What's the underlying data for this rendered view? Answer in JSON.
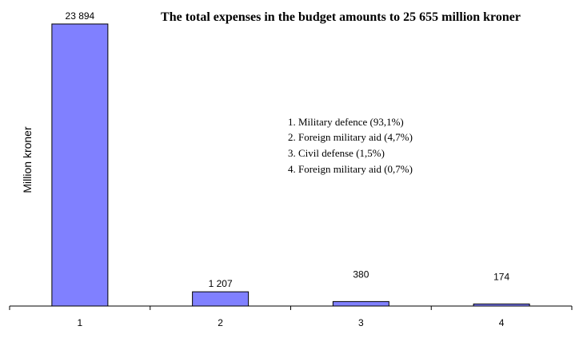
{
  "chart_data": {
    "type": "bar",
    "title": "The total expenses in the budget amounts to 25 655 million kroner",
    "xlabel": "",
    "ylabel": "Million kroner",
    "categories": [
      "1",
      "2",
      "3",
      "4"
    ],
    "values": [
      23894,
      1207,
      380,
      174
    ],
    "value_labels": [
      "23 894",
      "1 207",
      "380",
      "174"
    ],
    "ylim": [
      0,
      23894
    ],
    "grid": false,
    "bar_color": "#8080ff",
    "legend": [
      "1.  Military defence (93,1%)",
      "2.  Foreign military aid (4,7%)",
      "3.  Civil defense (1,5%)",
      "4.  Foreign military aid (0,7%)"
    ]
  }
}
